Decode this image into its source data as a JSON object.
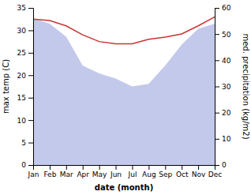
{
  "chart_data": {
    "type": "line",
    "x_label": "date (month)",
    "y_label": "max temp (C)",
    "y2_label": "med. precipitation (kg/m2)",
    "categories": [
      "Jan",
      "Feb",
      "Mar",
      "Apr",
      "May",
      "Jun",
      "Jul",
      "Aug",
      "Sep",
      "Oct",
      "Nov",
      "Dec"
    ],
    "ylim": [
      0,
      35
    ],
    "yticks": [
      0,
      5,
      10,
      15,
      20,
      25,
      30,
      35
    ],
    "y2lim": [
      0,
      60
    ],
    "y2ticks": [
      0,
      10,
      20,
      30,
      40,
      50,
      60
    ],
    "grid": false,
    "series": [
      {
        "type": "area",
        "axis": "y2",
        "color": "#b8bfe8",
        "values": [
          56,
          54,
          49,
          38,
          35,
          33,
          30,
          31,
          38,
          46,
          52,
          54
        ]
      },
      {
        "type": "line",
        "color": "#cc3333",
        "values": [
          32.5,
          32.2,
          31.0,
          29.0,
          27.5,
          27.0,
          27.0,
          28.0,
          28.5,
          29.2,
          31.0,
          33.0
        ]
      }
    ]
  }
}
